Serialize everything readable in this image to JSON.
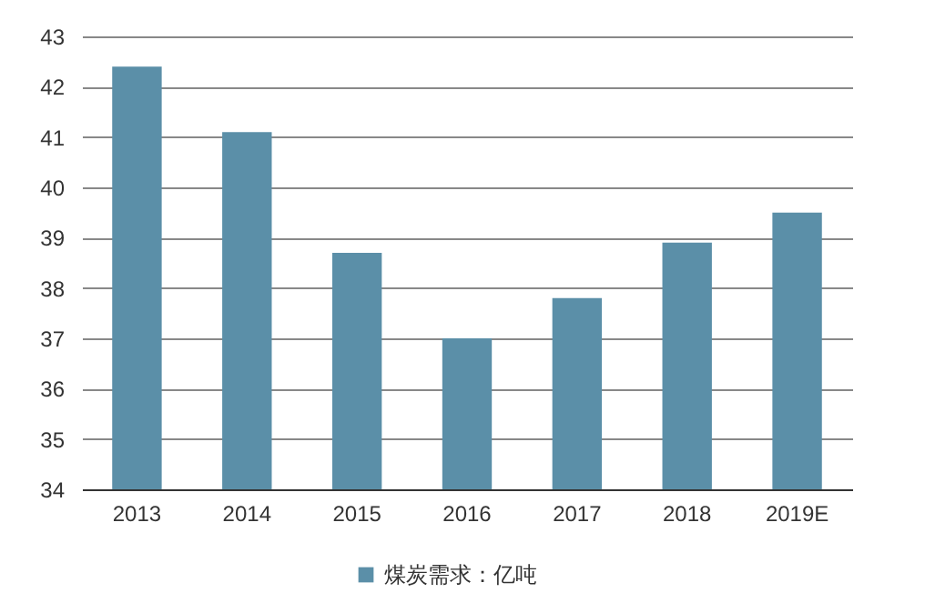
{
  "chart_data": {
    "type": "bar",
    "categories": [
      "2013",
      "2014",
      "2015",
      "2016",
      "2017",
      "2018",
      "2019E"
    ],
    "series": [
      {
        "name": "煤炭需求：亿吨",
        "color": "#5b8fa8",
        "values": [
          42.4,
          41.1,
          38.7,
          37.0,
          37.8,
          38.9,
          39.5
        ]
      }
    ],
    "ylim": [
      34,
      43
    ],
    "yticks": [
      34,
      35,
      36,
      37,
      38,
      39,
      40,
      41,
      42,
      43
    ],
    "grid": "y",
    "legend": "bottom"
  }
}
